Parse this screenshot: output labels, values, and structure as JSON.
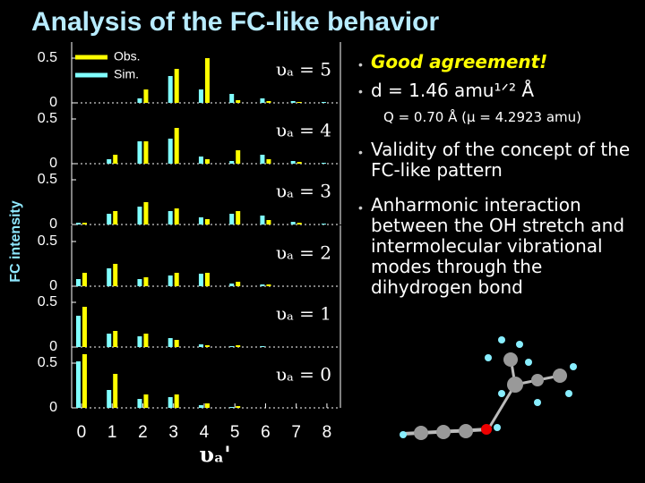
{
  "title": "Analysis of the FC-like behavior",
  "bullets": [
    "Good agreement!",
    "d = 1.46 amu¹ᐟ² Å",
    "Q = 0.70 Å (μ = 4.2923 amu)",
    "Validity of the concept of the FC-like pattern",
    "Anharmonic interaction between the OH stretch and intermolecular vibrational modes through the dihydrogen bond"
  ],
  "chart_data": [
    {
      "type": "bar",
      "label": "υₐ = 5",
      "ylabel": "FC intensity",
      "x": [
        0,
        1,
        2,
        3,
        4,
        5,
        6,
        7,
        8
      ],
      "xlim": [
        -0.32,
        8.44
      ],
      "ylim": [
        0,
        0.6
      ],
      "yticks": [
        0,
        0.5
      ],
      "series": [
        {
          "name": "Obs.",
          "color": "#ffff00",
          "values": [
            0,
            0,
            0.15,
            0.38,
            0.5,
            0.03,
            0.02,
            0.01,
            0
          ]
        },
        {
          "name": "Sim.",
          "color": "#80ffff",
          "values": [
            0,
            0,
            0.05,
            0.3,
            0.15,
            0.1,
            0.05,
            0.02,
            0.01
          ]
        }
      ]
    },
    {
      "type": "bar",
      "label": "υₐ = 4",
      "x": [
        0,
        1,
        2,
        3,
        4,
        5,
        6,
        7,
        8
      ],
      "xlim": [
        -0.32,
        8.44
      ],
      "ylim": [
        0,
        0.6
      ],
      "yticks": [
        0,
        0.5
      ],
      "series": [
        {
          "name": "Obs.",
          "color": "#ffff00",
          "values": [
            0,
            0.1,
            0.25,
            0.4,
            0.05,
            0.15,
            0.05,
            0.02,
            0
          ]
        },
        {
          "name": "Sim.",
          "color": "#80ffff",
          "values": [
            0,
            0.05,
            0.25,
            0.28,
            0.08,
            0.03,
            0.1,
            0.03,
            0.01
          ]
        }
      ]
    },
    {
      "type": "bar",
      "label": "υₐ = 3",
      "x": [
        0,
        1,
        2,
        3,
        4,
        5,
        6,
        7,
        8
      ],
      "xlim": [
        -0.32,
        8.44
      ],
      "ylim": [
        0,
        0.6
      ],
      "yticks": [
        0,
        0.5
      ],
      "series": [
        {
          "name": "Obs.",
          "color": "#ffff00",
          "values": [
            0.02,
            0.15,
            0.25,
            0.18,
            0.06,
            0.15,
            0.05,
            0.02,
            0
          ]
        },
        {
          "name": "Sim.",
          "color": "#80ffff",
          "values": [
            0.02,
            0.12,
            0.2,
            0.15,
            0.08,
            0.12,
            0.1,
            0.03,
            0.01
          ]
        }
      ]
    },
    {
      "type": "bar",
      "label": "υₐ = 2",
      "x": [
        0,
        1,
        2,
        3,
        4,
        5,
        6,
        7,
        8
      ],
      "xlim": [
        -0.32,
        8.44
      ],
      "ylim": [
        0,
        0.6
      ],
      "yticks": [
        0,
        0.5
      ],
      "series": [
        {
          "name": "Obs.",
          "color": "#ffff00",
          "values": [
            0.15,
            0.25,
            0.1,
            0.15,
            0.15,
            0.05,
            0.02,
            0,
            0
          ]
        },
        {
          "name": "Sim.",
          "color": "#80ffff",
          "values": [
            0.08,
            0.2,
            0.08,
            0.12,
            0.14,
            0.03,
            0.02,
            0,
            0
          ]
        }
      ]
    },
    {
      "type": "bar",
      "label": "υₐ = 1",
      "x": [
        0,
        1,
        2,
        3,
        4,
        5,
        6,
        7,
        8
      ],
      "xlim": [
        -0.32,
        8.44
      ],
      "ylim": [
        0,
        0.6
      ],
      "yticks": [
        0,
        0.5
      ],
      "series": [
        {
          "name": "Obs.",
          "color": "#ffff00",
          "values": [
            0.45,
            0.18,
            0.15,
            0.08,
            0.02,
            0.02,
            0,
            0,
            0
          ]
        },
        {
          "name": "Sim.",
          "color": "#80ffff",
          "values": [
            0.35,
            0.15,
            0.12,
            0.1,
            0.03,
            0.01,
            0.01,
            0,
            0
          ]
        }
      ]
    },
    {
      "type": "bar",
      "label": "υₐ = 0",
      "xlabel": "υₐ'",
      "x": [
        0,
        1,
        2,
        3,
        4,
        5,
        6,
        7,
        8
      ],
      "xlim": [
        -0.32,
        8.44
      ],
      "xticks": [
        0,
        1,
        2,
        3,
        4,
        5,
        6,
        7,
        8
      ],
      "ylim": [
        0,
        0.6
      ],
      "yticks": [
        0,
        0.5
      ],
      "series": [
        {
          "name": "Obs.",
          "color": "#ffff00",
          "values": [
            0.6,
            0.38,
            0.15,
            0.15,
            0.05,
            0.02,
            0,
            0,
            0
          ]
        },
        {
          "name": "Sim.",
          "color": "#80ffff",
          "values": [
            0.52,
            0.2,
            0.1,
            0.12,
            0.03,
            0.01,
            0,
            0,
            0
          ]
        }
      ]
    }
  ]
}
